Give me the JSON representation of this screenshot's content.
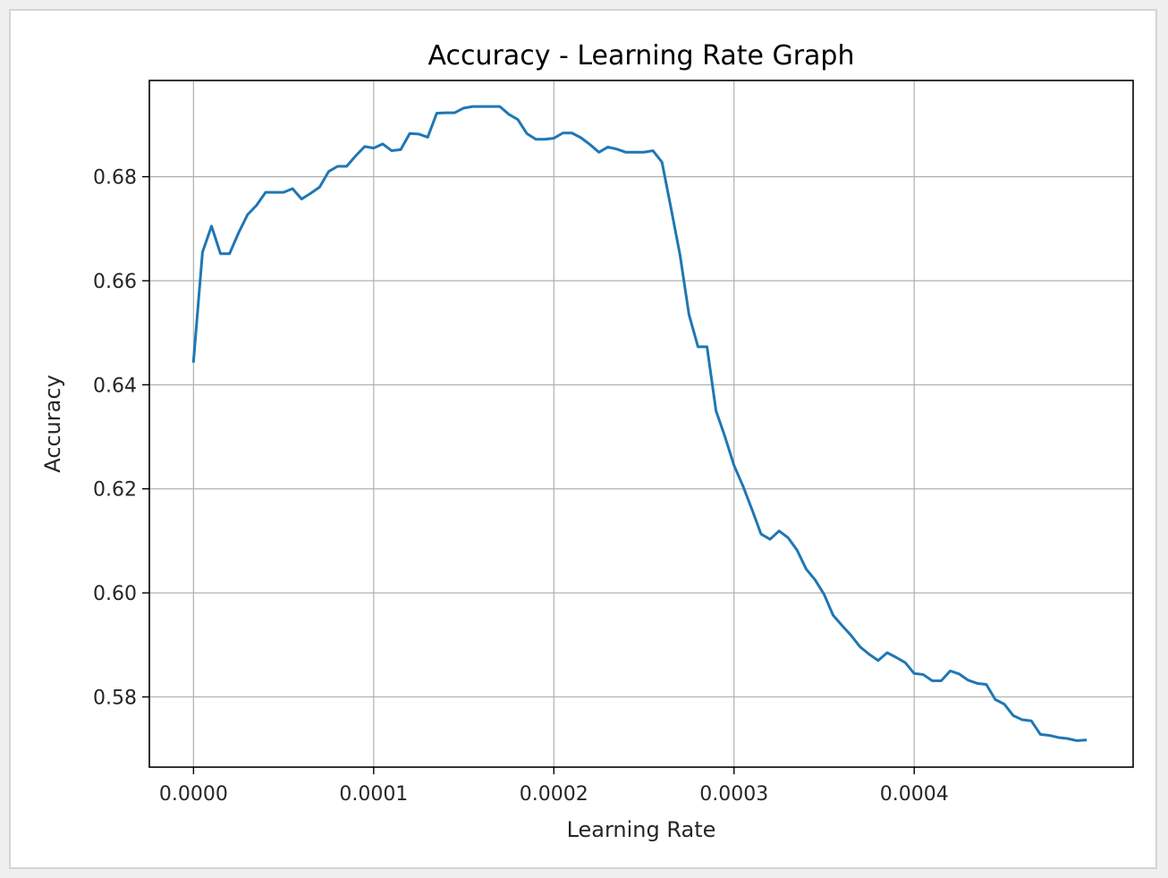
{
  "chart_data": {
    "type": "line",
    "title": "Accuracy - Learning Rate Graph",
    "xlabel": "Learning Rate",
    "ylabel": "Accuracy",
    "xlim": [
      -2.45e-05,
      0.0005215
    ],
    "ylim": [
      0.5665,
      0.6985
    ],
    "grid": true,
    "line_color": "#1f77b4",
    "x_ticks": [
      {
        "value": 0.0,
        "label": "0.0000"
      },
      {
        "value": 0.0001,
        "label": "0.0001"
      },
      {
        "value": 0.0002,
        "label": "0.0002"
      },
      {
        "value": 0.0003,
        "label": "0.0003"
      },
      {
        "value": 0.0004,
        "label": "0.0004"
      }
    ],
    "y_ticks": [
      {
        "value": 0.58,
        "label": "0.58"
      },
      {
        "value": 0.6,
        "label": "0.60"
      },
      {
        "value": 0.62,
        "label": "0.62"
      },
      {
        "value": 0.64,
        "label": "0.64"
      },
      {
        "value": 0.66,
        "label": "0.66"
      },
      {
        "value": 0.68,
        "label": "0.68"
      }
    ],
    "series": [
      {
        "x": [
          0.0,
          5e-06,
          1e-05,
          1.5e-05,
          2e-05,
          2.5e-05,
          3e-05,
          3.5e-05,
          4e-05,
          4.5e-05,
          5e-05,
          5.5e-05,
          6e-05,
          6.5e-05,
          7e-05,
          7.5e-05,
          8e-05,
          8.5e-05,
          9e-05,
          9.5e-05,
          0.0001,
          0.000105,
          0.00011,
          0.000115,
          0.00012,
          0.000125,
          0.00013,
          0.000135,
          0.00014,
          0.000145,
          0.00015,
          0.000155,
          0.00016,
          0.000165,
          0.00017,
          0.000175,
          0.00018,
          0.000185,
          0.00019,
          0.000195,
          0.0002,
          0.000205,
          0.00021,
          0.000215,
          0.00022,
          0.000225,
          0.00023,
          0.000235,
          0.00024,
          0.000245,
          0.00025,
          0.000255,
          0.00026,
          0.000265,
          0.00027,
          0.000275,
          0.00028,
          0.000285,
          0.00029,
          0.000295,
          0.0003,
          0.000305,
          0.00031,
          0.000315,
          0.00032,
          0.000325,
          0.00033,
          0.000335,
          0.00034,
          0.000345,
          0.00035,
          0.000355,
          0.00036,
          0.000365,
          0.00037,
          0.000375,
          0.00038,
          0.000385,
          0.00039,
          0.000395,
          0.0004,
          0.000405,
          0.00041,
          0.000415,
          0.00042,
          0.000425,
          0.00043,
          0.000435,
          0.00044,
          0.000445,
          0.00045,
          0.000455,
          0.00046,
          0.000465,
          0.00047,
          0.000475,
          0.00048,
          0.000485,
          0.00049,
          0.000495
        ],
        "y": [
          0.6445,
          0.6655,
          0.6705,
          0.6652,
          0.6652,
          0.6692,
          0.6727,
          0.6745,
          0.677,
          0.677,
          0.677,
          0.6777,
          0.6757,
          0.6768,
          0.678,
          0.681,
          0.682,
          0.682,
          0.684,
          0.6858,
          0.6855,
          0.6863,
          0.685,
          0.6852,
          0.6883,
          0.6882,
          0.6876,
          0.6922,
          0.6923,
          0.6923,
          0.6932,
          0.6935,
          0.6935,
          0.6935,
          0.6935,
          0.692,
          0.691,
          0.6883,
          0.6872,
          0.6872,
          0.6874,
          0.6884,
          0.6884,
          0.6875,
          0.6862,
          0.6847,
          0.6857,
          0.6853,
          0.6847,
          0.6847,
          0.6847,
          0.685,
          0.6828,
          0.674,
          0.665,
          0.6535,
          0.6473,
          0.6473,
          0.635,
          0.63,
          0.6245,
          0.6205,
          0.616,
          0.6113,
          0.6103,
          0.6119,
          0.6106,
          0.6082,
          0.6046,
          0.6025,
          0.5997,
          0.5957,
          0.5937,
          0.5918,
          0.5896,
          0.5882,
          0.587,
          0.5885,
          0.5876,
          0.5866,
          0.5845,
          0.5843,
          0.5831,
          0.5831,
          0.585,
          0.5844,
          0.5832,
          0.5826,
          0.5824,
          0.5795,
          0.5786,
          0.5764,
          0.5756,
          0.5754,
          0.5728,
          0.5726,
          0.5722,
          0.572,
          0.5716,
          0.5717
        ]
      }
    ]
  }
}
